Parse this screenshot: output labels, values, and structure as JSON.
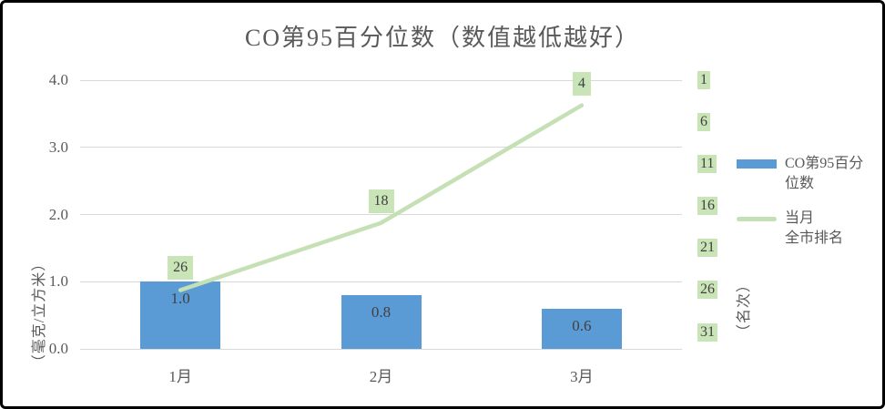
{
  "chart_data": {
    "type": "bar+line combo",
    "title": "CO第95百分位数（数值越低越好）",
    "categories": [
      "1月",
      "2月",
      "3月"
    ],
    "series": [
      {
        "name": "CO第95百分位数",
        "type": "bar",
        "axis": "left",
        "values": [
          1.0,
          0.8,
          0.6
        ],
        "labels": [
          "1.0",
          "0.8",
          "0.6"
        ],
        "color": "#5b9bd5"
      },
      {
        "name": "当月全市排名",
        "type": "line",
        "axis": "right",
        "values": [
          26,
          18,
          4
        ],
        "labels": [
          "26",
          "18",
          "4"
        ],
        "color": "#c5e0b4"
      }
    ],
    "left_axis": {
      "title": "（毫克/立方米）",
      "min": 0,
      "max": 4,
      "tick_values": [
        0,
        1,
        2,
        3,
        4
      ],
      "tick_labels": [
        "0.0",
        "1.0",
        "2.0",
        "3.0",
        "4.0"
      ]
    },
    "right_axis": {
      "title": "（名次）",
      "min": 1,
      "max": 33,
      "direction": "inverted (rank 1 at top)",
      "tick_values": [
        1,
        6,
        11,
        16,
        21,
        26,
        31
      ],
      "tick_labels": [
        "1",
        "6",
        "11",
        "16",
        "21",
        "26",
        "31"
      ]
    },
    "legend": [
      {
        "swatch": "bar",
        "color": "#5b9bd5",
        "lines": [
          "CO第95百分",
          "位数"
        ]
      },
      {
        "swatch": "line",
        "color": "#c5e0b4",
        "lines": [
          "当月",
          "全市排名"
        ]
      }
    ],
    "grid": true,
    "legend_position": "right",
    "colors": {
      "bar": "#5b9bd5",
      "line": "#c5e0b4",
      "label_bg": "#c9e5b8",
      "gridline": "#d9d9d9",
      "axis_text": "#595959",
      "label_text": "#3f3f3f"
    }
  }
}
